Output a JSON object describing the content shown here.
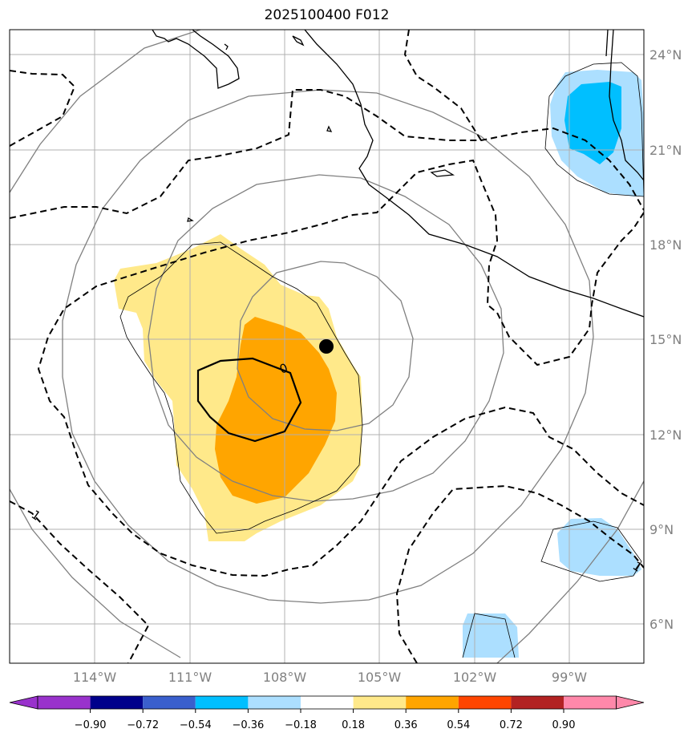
{
  "title": "2025100400 F012",
  "map": {
    "lat_labels": [
      "24°N",
      "21°N",
      "18°N",
      "15°N",
      "12°N",
      "9°N",
      "6°N"
    ],
    "lon_labels": [
      "114°W",
      "111°W",
      "108°W",
      "105°W",
      "102°W",
      "99°W"
    ],
    "contour_labels": [
      "1",
      "0",
      "1"
    ],
    "colors": {
      "light_yellow": "#ffe98a",
      "orange": "#ffa500",
      "light_blue": "#acdfff",
      "deep_sky_blue": "#00bfff",
      "grid": "#b0b0b0",
      "range_rings": "#808080"
    },
    "storm_center_marker": "black-dot"
  },
  "colorbar": {
    "tick_labels": [
      "−0.90",
      "−0.72",
      "−0.54",
      "−0.36",
      "−0.18",
      "0.18",
      "0.36",
      "0.54",
      "0.72",
      "0.90"
    ],
    "colors": [
      "#9932cc",
      "#00008b",
      "#3a5fcd",
      "#00bfff",
      "#acdfff",
      "#ffffff",
      "#ffe98a",
      "#ffa500",
      "#ff4500",
      "#b22222",
      "#ff88aa"
    ]
  }
}
